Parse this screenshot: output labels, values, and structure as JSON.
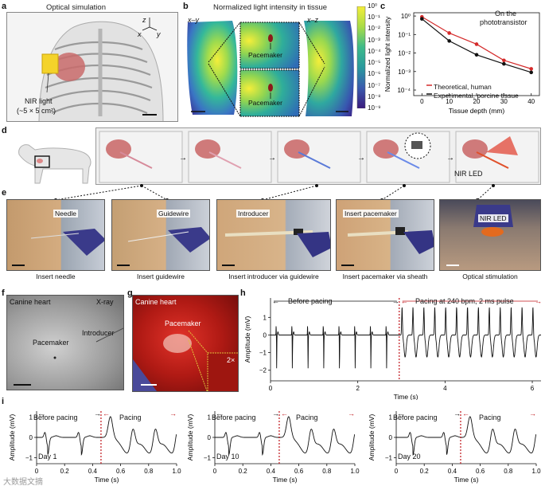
{
  "panel_a": {
    "letter": "a",
    "title": "Optical simulation",
    "axes": {
      "z": "z",
      "x": "x",
      "y": "y"
    },
    "light_label_1": "NIR light",
    "light_label_2": "(~5 × 5 cm²)"
  },
  "panel_b": {
    "letter": "b",
    "title": "Normalized light intensity in tissue",
    "view_xy": "x–y",
    "view_xz": "x–z",
    "pacemaker_top": "Pacemaker",
    "pacemaker_bottom": "Pacemaker",
    "colorbar_ticks": [
      "10⁰",
      "10⁻¹",
      "10⁻²",
      "10⁻³",
      "10⁻⁴",
      "10⁻⁵",
      "10⁻⁶",
      "10⁻⁷",
      "10⁻⁸",
      "10⁻⁹"
    ]
  },
  "panel_c": {
    "letter": "c",
    "annotation_1": "On the",
    "annotation_2": "phototransistor",
    "legend_1": "Theoretical, human",
    "legend_2": "Experimental, porcine tissue",
    "ytick_labels": [
      "10⁰",
      "10⁻¹",
      "10⁻²",
      "10⁻³",
      "10⁻⁴"
    ],
    "xtick_labels": [
      "0",
      "10",
      "20",
      "30",
      "40"
    ]
  },
  "panel_d": {
    "letter": "d",
    "nir_led": "NIR LED"
  },
  "panel_e": {
    "letter": "e",
    "steps": [
      {
        "tag": "Needle",
        "caption": "Insert needle"
      },
      {
        "tag": "Guidewire",
        "caption": "Insert guidewire"
      },
      {
        "tag": "Introducer",
        "caption": "Insert introducer via guidewire"
      },
      {
        "tag": "Insert pacemaker",
        "caption": "Insert pacemaker via sheath"
      },
      {
        "tag": "NIR LED",
        "caption": "Optical stimulation"
      }
    ]
  },
  "panel_f": {
    "letter": "f",
    "title": "Canine heart",
    "modality": "X-ray",
    "pacemaker": "Pacemaker",
    "introducer": "Introducer"
  },
  "panel_g": {
    "letter": "g",
    "title": "Canine heart",
    "pacemaker": "Pacemaker",
    "zoom": "2×"
  },
  "panel_h": {
    "letter": "h",
    "before": "Before pacing",
    "pacing": "Pacing at 240 bpm, 2 ms pulse",
    "ytick_labels": [
      "1",
      "0",
      "−1",
      "−2"
    ],
    "xtick_labels": [
      "0",
      "2",
      "4",
      "6"
    ]
  },
  "panel_i": {
    "letter": "i",
    "before": "Before pacing",
    "pacing": "Pacing",
    "days": [
      "Day 1",
      "Day 10",
      "Day 20"
    ],
    "ytick_labels": [
      "1",
      "0",
      "−1"
    ],
    "xtick_labels": [
      "0",
      "0.2",
      "0.4",
      "0.6",
      "0.8",
      "1.0"
    ]
  },
  "watermark": "大数据文摘",
  "chart_data": [
    {
      "type": "line",
      "id": "panel_c",
      "xlabel": "Tissue depth (mm)",
      "ylabel": "Normalized light intensity",
      "yscale": "log",
      "xlim": [
        -3,
        43
      ],
      "ylim": [
        5e-05,
        1.5
      ],
      "x": [
        0,
        10,
        20,
        30,
        40
      ],
      "series": [
        {
          "name": "Theoretical, human",
          "color": "#d42a2a",
          "values": [
            0.9,
            0.12,
            0.03,
            0.004,
            0.0014
          ]
        },
        {
          "name": "Experimental, porcine tissue",
          "color": "#111111",
          "values": [
            0.7,
            0.045,
            0.008,
            0.0026,
            0.0009
          ]
        }
      ]
    },
    {
      "type": "line",
      "id": "panel_h",
      "xlabel": "Time (s)",
      "ylabel": "Amplitude (mV)",
      "xlim": [
        0,
        6.2
      ],
      "ylim": [
        -2.6,
        2.1
      ],
      "pacing_start_s": 2.95,
      "before_interval_s": 0.36,
      "paced_rate_bpm": 240
    },
    {
      "type": "line",
      "id": "panel_i",
      "xlabel": "Time (s)",
      "ylabel": "Amplitude (mV)",
      "xlim": [
        0,
        1.0
      ],
      "ylim": [
        -1.3,
        1.3
      ],
      "pacing_start_s": 0.46
    }
  ]
}
